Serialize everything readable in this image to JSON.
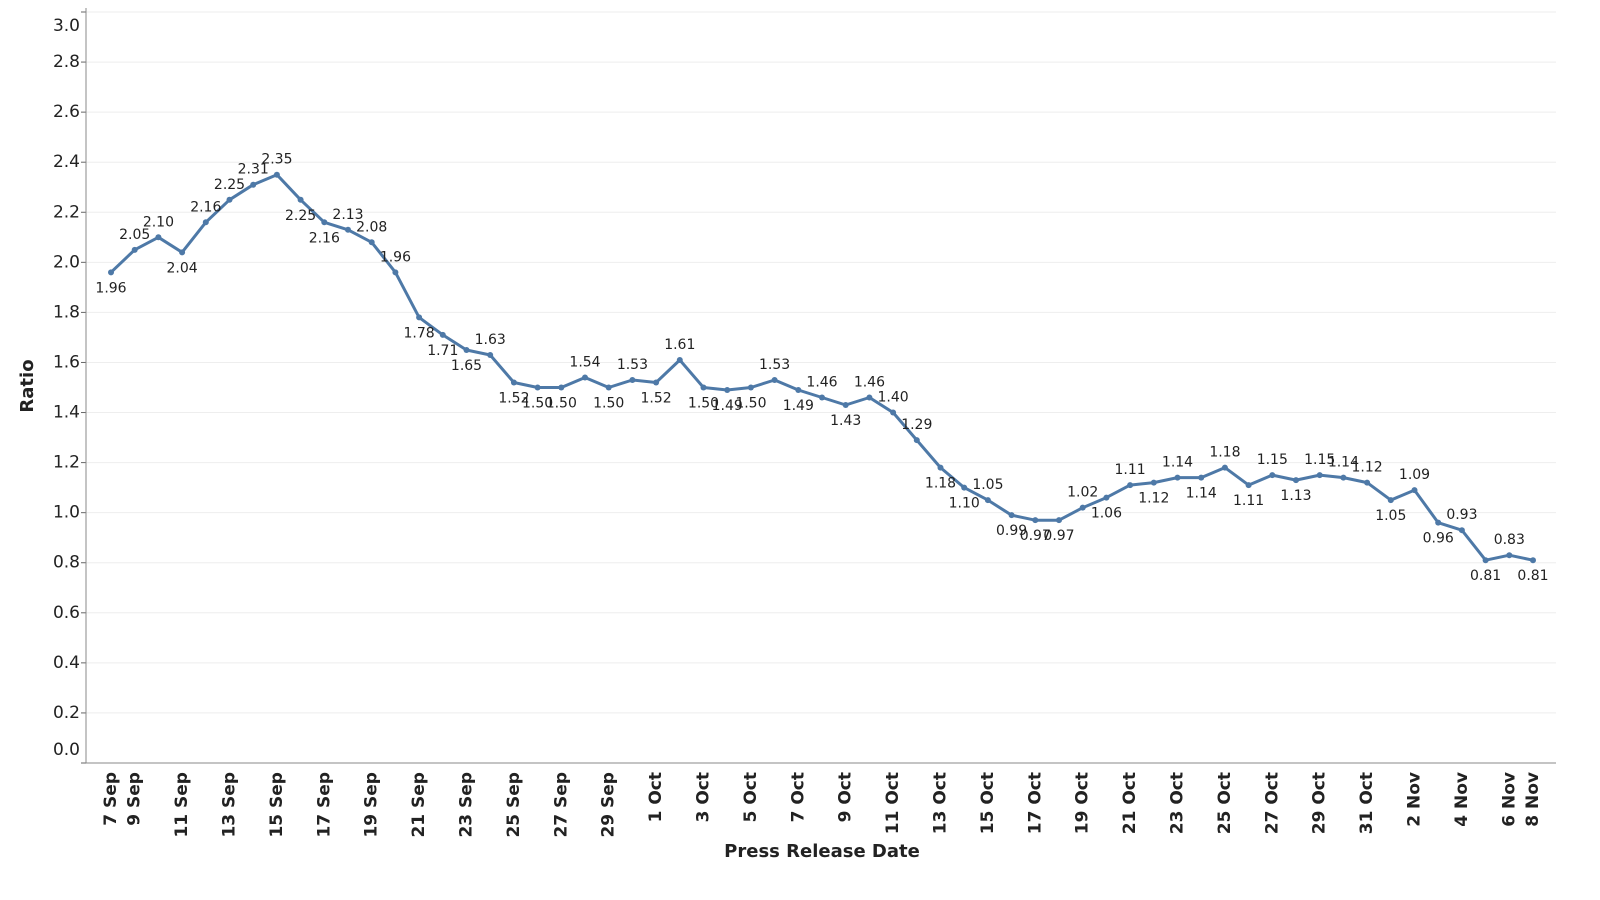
{
  "chart_data": {
    "type": "line",
    "y_label": "Ratio",
    "x_label": "Press Release Date",
    "categories": [
      "7 Sep",
      "9 Sep",
      null,
      "11 Sep",
      null,
      "13 Sep",
      null,
      "15 Sep",
      null,
      "17 Sep",
      null,
      "19 Sep",
      null,
      "21 Sep",
      null,
      "23 Sep",
      null,
      "25 Sep",
      null,
      "27 Sep",
      null,
      "29 Sep",
      null,
      "1 Oct",
      null,
      "3 Oct",
      null,
      "5 Oct",
      null,
      "7 Oct",
      null,
      "9 Oct",
      null,
      "11 Oct",
      null,
      "13 Oct",
      null,
      "15 Oct",
      null,
      "17 Oct",
      null,
      "19 Oct",
      null,
      "21 Oct",
      null,
      "23 Oct",
      null,
      "25 Oct",
      null,
      "27 Oct",
      null,
      "29 Oct",
      null,
      "31 Oct",
      null,
      "2 Nov",
      null,
      "4 Nov",
      null,
      "6 Nov",
      "8 Nov"
    ],
    "values": [
      1.96,
      2.05,
      2.1,
      2.04,
      2.16,
      2.25,
      2.31,
      2.35,
      2.25,
      2.16,
      2.13,
      2.08,
      1.96,
      1.78,
      1.71,
      1.65,
      1.63,
      1.52,
      1.5,
      1.5,
      1.54,
      1.5,
      1.53,
      1.52,
      1.61,
      1.5,
      1.49,
      1.5,
      1.53,
      1.49,
      1.46,
      1.43,
      1.46,
      1.4,
      1.29,
      1.18,
      1.1,
      1.05,
      0.99,
      0.97,
      0.97,
      1.02,
      1.06,
      1.11,
      1.12,
      1.14,
      1.14,
      1.18,
      1.11,
      1.15,
      1.13,
      1.15,
      1.14,
      1.12,
      1.05,
      1.09,
      0.96,
      0.93,
      0.81,
      0.83,
      0.81
    ],
    "value_labels": [
      "1.96",
      "2.05",
      "2.10",
      "2.04",
      "2.16",
      "2.25",
      "2.31",
      "2.35",
      "2.25",
      "2.16",
      "2.13",
      "2.08",
      "1.96",
      "1.78",
      "1.71",
      "1.65",
      "1.63",
      "1.52",
      "1.50",
      "1.50",
      "1.54",
      "1.50",
      "1.53",
      "1.52",
      "1.61",
      "1.50",
      "1.49",
      "1.50",
      "1.53",
      "1.49",
      "1.46",
      "1.43",
      "1.46",
      "1.40",
      "1.29",
      "1.18",
      "1.10",
      "1.05",
      "0.99",
      "0.97",
      "0.97",
      "1.02",
      "1.06",
      "1.11",
      "1.12",
      "1.14",
      "1.14",
      "1.18",
      "1.11",
      "1.15",
      "1.13",
      "1.15",
      "1.14",
      "1.12",
      "1.05",
      "1.09",
      "0.96",
      "0.93",
      "0.81",
      "0.83",
      "0.81"
    ],
    "color": "#4e79a7",
    "ylim": [
      0,
      3
    ],
    "yticks": [
      {
        "value": 0,
        "label": "0.0"
      },
      0.2,
      0.4,
      0.6,
      0.8,
      {
        "value": 1,
        "label": "1.0"
      },
      1.2,
      1.4,
      1.6,
      1.8,
      {
        "value": 2,
        "label": "2.0"
      },
      2.2,
      2.4,
      2.6,
      2.8,
      {
        "value": 3,
        "label": "3.0"
      }
    ],
    "grid": true
  }
}
